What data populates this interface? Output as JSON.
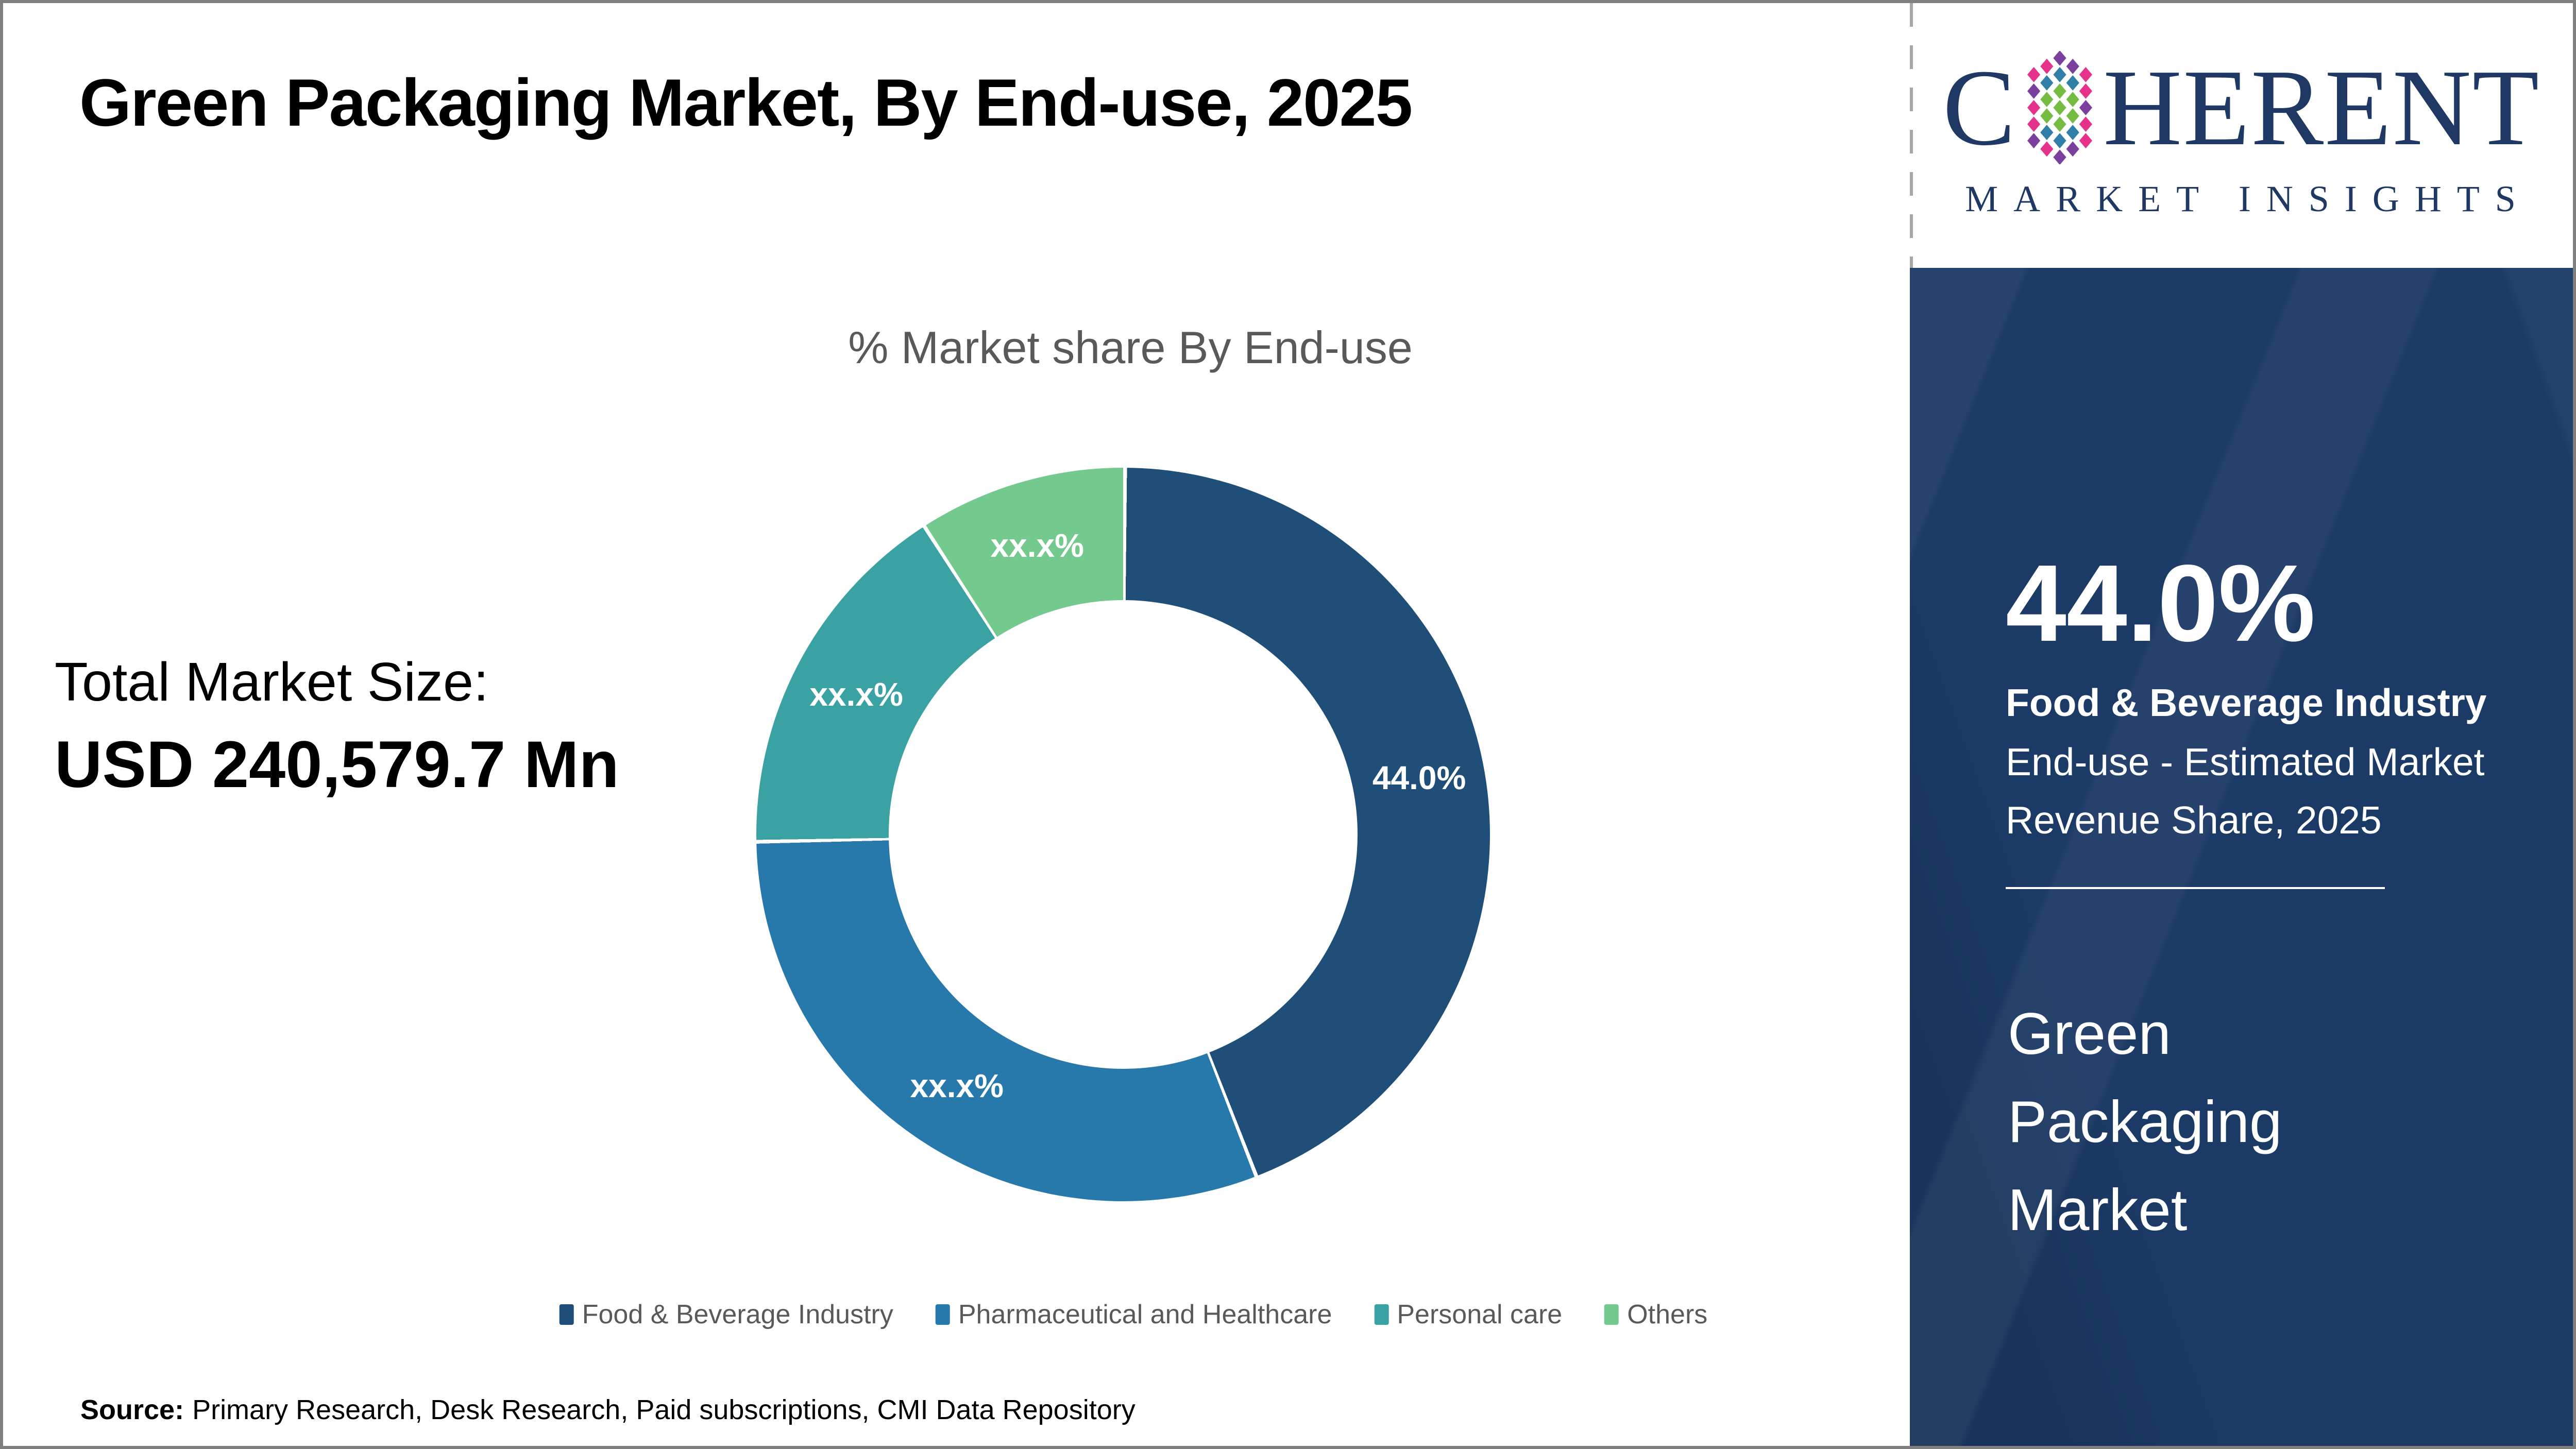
{
  "frame": {
    "border_color": "#7f7f7f"
  },
  "header": {
    "title": "Green Packaging Market, By End-use, 2025"
  },
  "summary": {
    "label": "Total Market Size:",
    "value": "USD 240,579.7 Mn"
  },
  "chart_data": {
    "type": "pie",
    "variant": "donut",
    "title": "% Market share By End-use",
    "start_angle_deg": 0,
    "direction": "clockwise",
    "legend_position": "bottom",
    "hole_ratio": 0.64,
    "slices": [
      {
        "label": "Food & Beverage Industry",
        "value": 44.0,
        "display": "44.0%",
        "color": "#1F4E79"
      },
      {
        "label": "Pharmaceutical and Healthcare",
        "value": 30.6,
        "display": "xx.x%",
        "color": "#2779AC"
      },
      {
        "label": "Personal care",
        "value": 16.2,
        "display": "xx.x%",
        "color": "#3AA2A2"
      },
      {
        "label": "Others",
        "value": 9.2,
        "display": "xx.x%",
        "color": "#74C98F"
      }
    ]
  },
  "brand": {
    "word_start": "C",
    "word_end": "HERENT",
    "tagline": "MARKET INSIGHTS",
    "navy": "#1F3864",
    "mosaic_colors": {
      "green": "#76BC43",
      "teal": "#2F7FA8",
      "pink": "#E5338C",
      "violet": "#7B3F9E"
    }
  },
  "side_panel": {
    "background": "#1C3A66",
    "stat_value": "44.0%",
    "stat_name": "Food & Beverage Industry",
    "stat_desc": "End-use - Estimated Market Revenue Share, 2025",
    "market_name": "Green Packaging Market"
  },
  "source": {
    "label": "Source:",
    "text": "Primary Research, Desk Research, Paid subscriptions, CMI Data Repository"
  }
}
